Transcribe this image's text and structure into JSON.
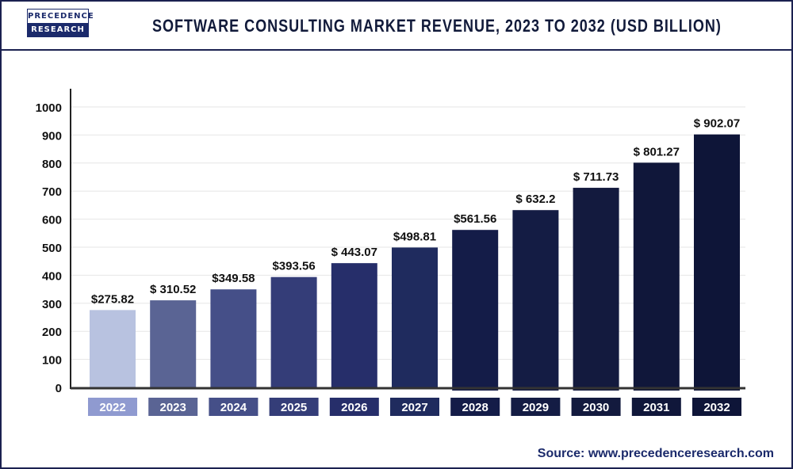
{
  "header": {
    "logo_line1": "PRECEDENCE",
    "logo_line2": "RESEARCH",
    "title": "SOFTWARE CONSULTING MARKET REVENUE, 2023 TO 2032 (USD BILLION)"
  },
  "source": "Source: www.precedenceresearch.com",
  "chart_data": {
    "type": "bar",
    "title": "SOFTWARE CONSULTING MARKET REVENUE, 2023 TO 2032 (USD BILLION)",
    "categories": [
      "2022",
      "2023",
      "2024",
      "2025",
      "2026",
      "2027",
      "2028",
      "2029",
      "2030",
      "2031",
      "2032"
    ],
    "values": [
      275.82,
      310.52,
      349.58,
      393.56,
      443.07,
      498.81,
      561.56,
      632.2,
      711.73,
      801.27,
      902.07
    ],
    "data_labels": [
      "$275.82",
      "$ 310.52",
      "$349.58",
      "$393.56",
      "$ 443.07",
      "$498.81",
      "$561.56",
      "$ 632.2",
      "$ 711.73",
      "$ 801.27",
      "$ 902.07"
    ],
    "ylim": [
      0,
      1000
    ],
    "yticks": [
      0,
      100,
      200,
      300,
      400,
      500,
      600,
      700,
      800,
      900,
      1000
    ],
    "grid": true,
    "legend": "none",
    "colors": [
      "#b8c2e0",
      "#5a6494",
      "#454f88",
      "#343d78",
      "#262e6a",
      "#1f2b5e",
      "#141c48",
      "#141c44",
      "#131a3e",
      "#10173a",
      "#0e1538"
    ],
    "label_colors": [
      "#8f9ad0",
      "#5a6494",
      "#454f88",
      "#343d78",
      "#262e6a",
      "#1f2b5e",
      "#141c48",
      "#141c44",
      "#131a3e",
      "#10173a",
      "#0e1538"
    ]
  }
}
